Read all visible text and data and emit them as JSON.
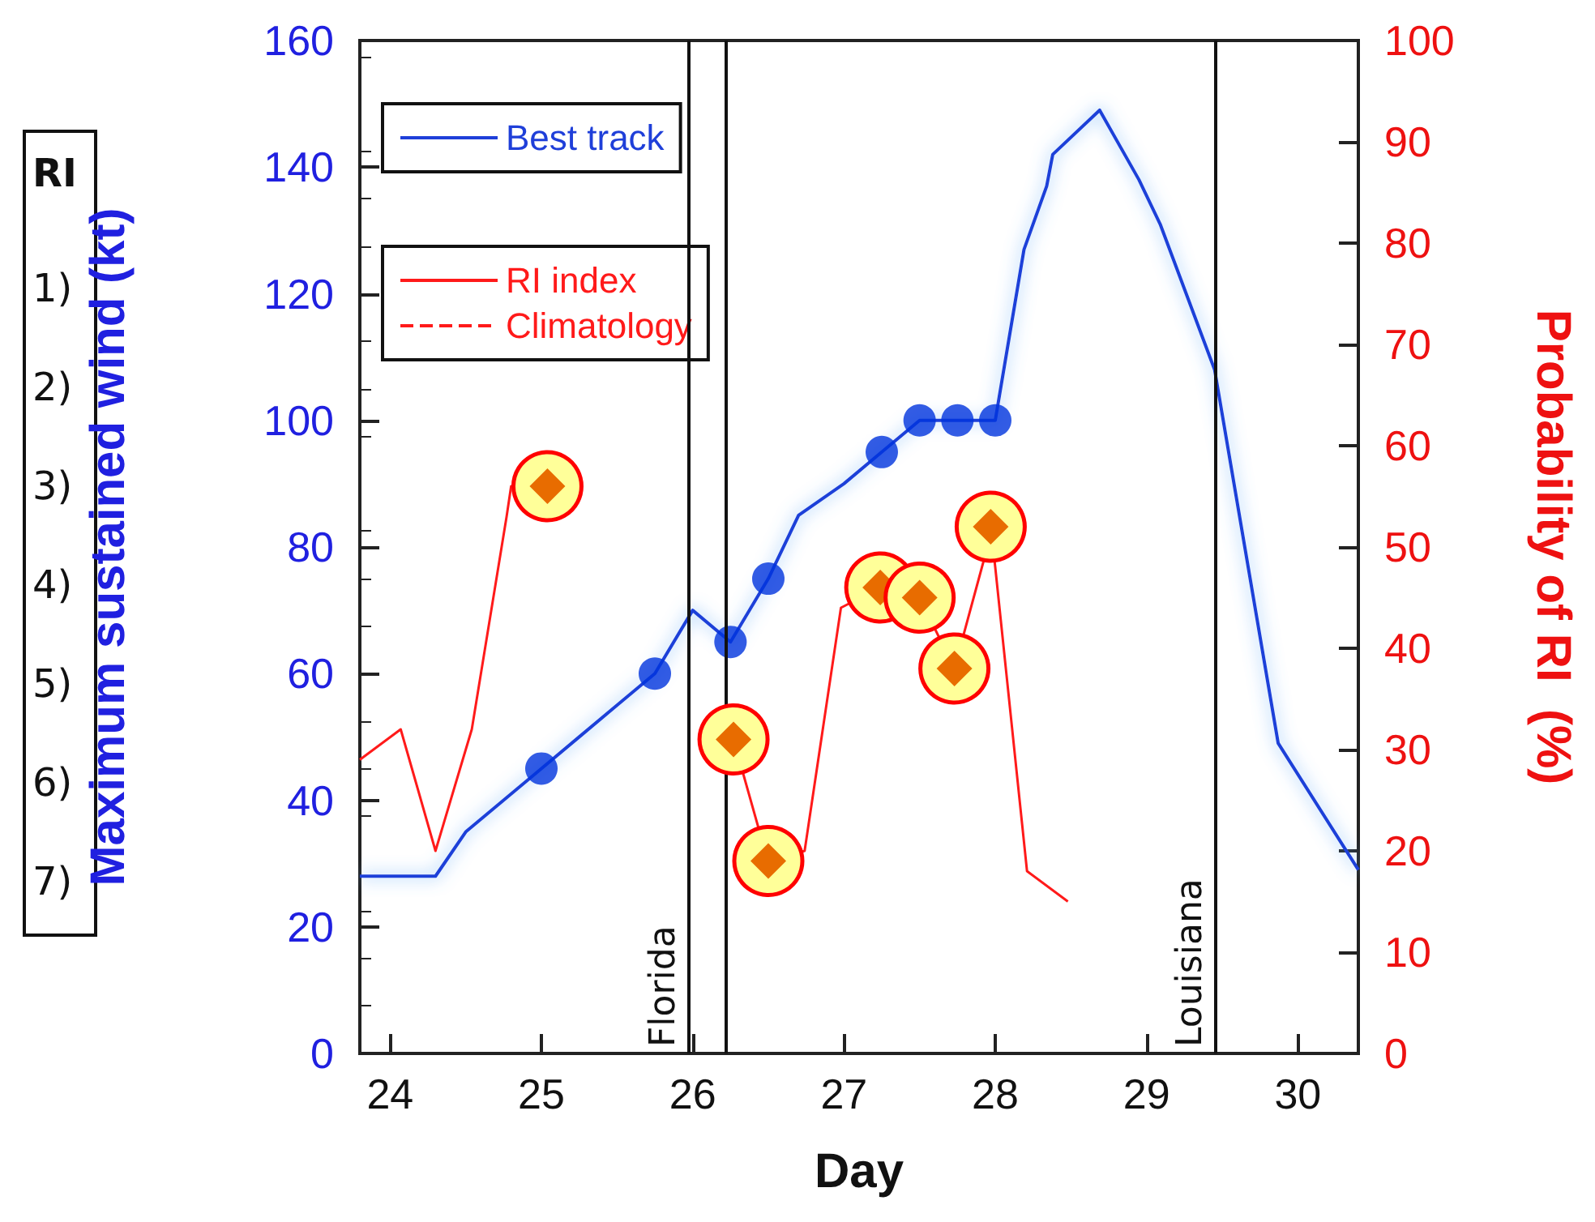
{
  "chart_data": {
    "type": "line",
    "xlabel": "Day",
    "ylabel": "Maximum sustained wind (kt)",
    "y2label": "Probability of RI  (%)",
    "xlim": [
      23.8,
      30.4
    ],
    "xticks": [
      24,
      25,
      26,
      27,
      28,
      29,
      30
    ],
    "ylim": [
      0,
      160
    ],
    "yticks": [
      0,
      20,
      40,
      60,
      80,
      100,
      120,
      140,
      160
    ],
    "y2lim": [
      0,
      100
    ],
    "y2ticks": [
      0,
      10,
      20,
      30,
      40,
      50,
      60,
      70,
      80,
      90,
      100
    ],
    "grid": false,
    "legend": "top left",
    "series": [
      {
        "name": "Best track",
        "color": "#1f3fd9",
        "marker": "none",
        "x": [
          23.8,
          24.3,
          24.5,
          24.75,
          25,
          25.25,
          25.5,
          25.75,
          26,
          26.25,
          26.5,
          26.7,
          27,
          27.25,
          27.5,
          27.75,
          28,
          28.19,
          28.34,
          28.38,
          28.69,
          28.95,
          29.09,
          29.45,
          29.87,
          30.4
        ],
        "values": [
          28,
          28,
          35,
          40,
          45,
          50,
          55,
          60,
          70,
          65,
          75,
          85,
          90,
          95,
          100,
          100,
          100,
          127,
          137,
          142,
          149,
          138,
          131,
          108,
          49,
          29
        ]
      },
      {
        "type": "scatter",
        "axis": "y",
        "color": "#0033dd",
        "marker": "circle",
        "x": [
          25,
          25.75,
          26.25,
          26.5,
          27.25,
          27.5,
          27.75,
          28
        ],
        "values": [
          45,
          60,
          65,
          75,
          95,
          100,
          100,
          100
        ]
      },
      {
        "name": "RI index",
        "axis": "y2",
        "color": "#ff1a1a",
        "marker": "none",
        "x": [
          23.8,
          24.07,
          24.3,
          24.54,
          24.77,
          24.8,
          25.04,
          25.6,
          26.27,
          26.44,
          26.5,
          26.74,
          26.98,
          27.24,
          27.5,
          27.73,
          27.93,
          27.97,
          28.0,
          28.21,
          28.48
        ],
        "values": [
          29,
          32,
          20,
          32,
          53,
          56,
          56,
          null,
          31,
          22,
          19,
          20,
          44,
          46,
          45,
          38,
          49,
          52,
          48,
          18,
          15
        ]
      },
      {
        "name": "Climatology",
        "axis": "y2",
        "color": "#ff1a1a",
        "marker": "none",
        "line_style": "dashed"
      },
      {
        "type": "scatter",
        "axis": "y2",
        "color": "#e86c00",
        "marker": "diamond",
        "x": [
          25.04,
          26.27,
          26.5,
          27.24,
          27.5,
          27.73,
          27.97
        ],
        "values": [
          56,
          31,
          19,
          46,
          45,
          38,
          52
        ]
      }
    ],
    "ref_lines": [
      {
        "axis": "x",
        "value": 25.97,
        "label": "Florida"
      },
      {
        "axis": "x",
        "value": 26.22,
        "label": null
      },
      {
        "axis": "x",
        "value": 29.45,
        "label": "Louisiana"
      }
    ],
    "annotations": [
      "RI",
      "1)",
      "2)",
      "3)",
      "4)",
      "5)",
      "6)",
      "7)"
    ]
  }
}
